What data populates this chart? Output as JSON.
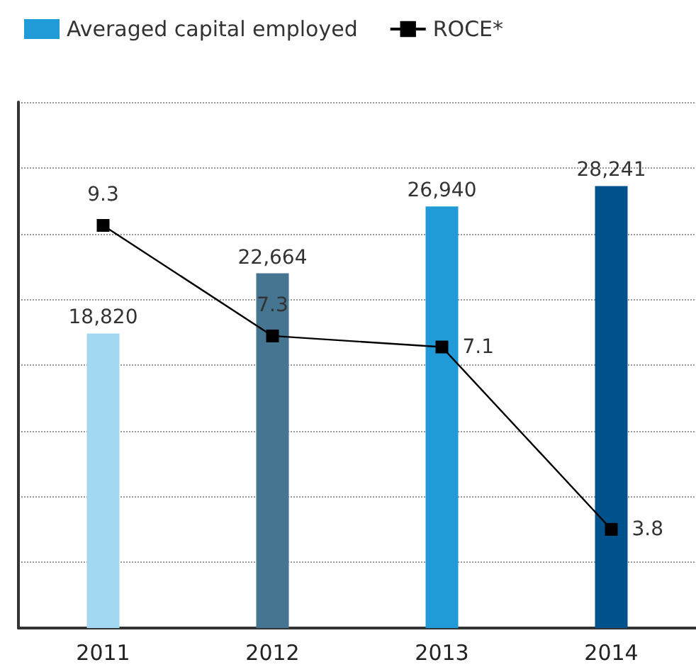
{
  "chart_data": {
    "type": "bar",
    "categories": [
      "2011",
      "2012",
      "2013",
      "2014"
    ],
    "series": [
      {
        "name": "Averaged capital employed",
        "colors": [
          "#a3d8f3",
          "#467592",
          "#209bd7",
          "#00528c"
        ],
        "values": [
          18820,
          22664,
          26940,
          28241
        ],
        "value_labels": [
          "18,820",
          "22,664",
          "26,940",
          "28,241"
        ]
      },
      {
        "name": "ROCE*",
        "type": "line",
        "axis": "y2",
        "color": "#000000",
        "values": [
          9.3,
          7.3,
          7.1,
          3.8
        ],
        "value_labels": [
          "9.3",
          "7.3",
          "7.1",
          "3.8"
        ]
      }
    ],
    "tick_labels": "x",
    "grid": "y",
    "legend": "top left",
    "marker": "square",
    "line_style": "solid"
  }
}
